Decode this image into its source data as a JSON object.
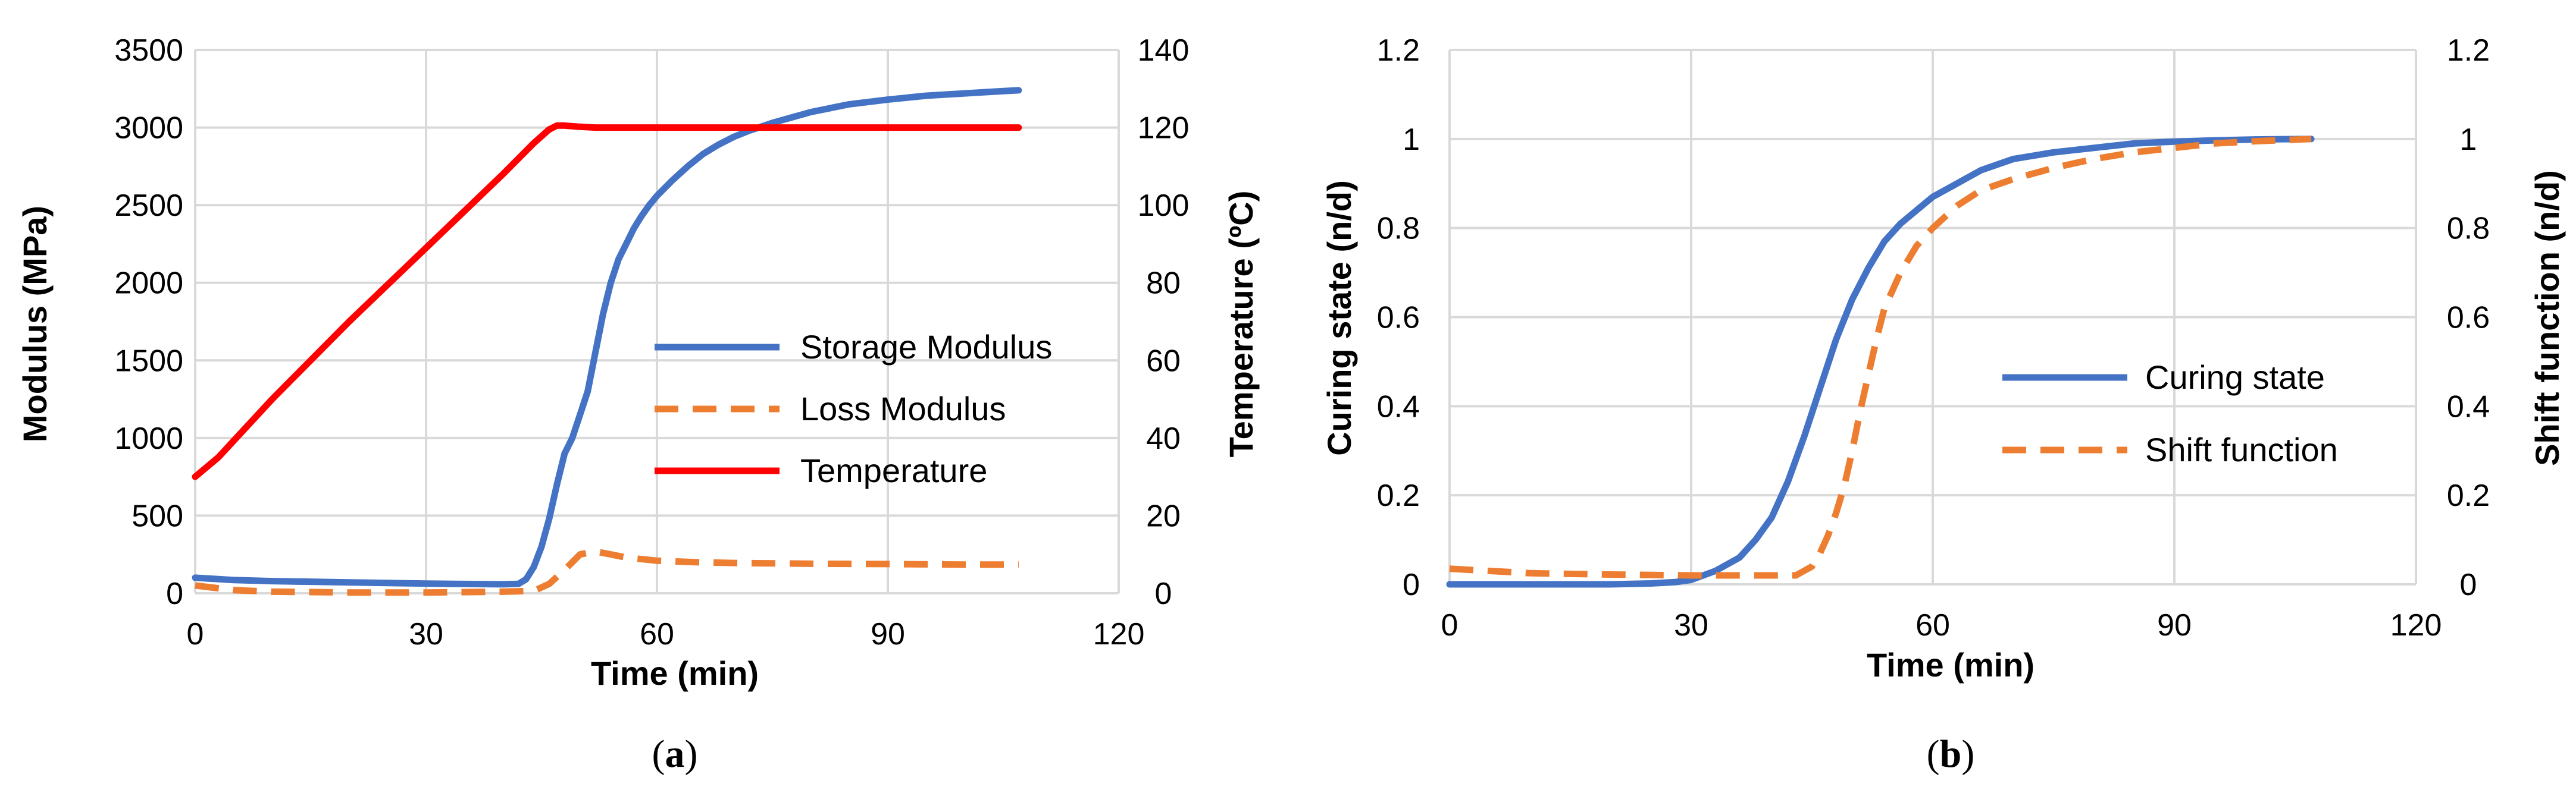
{
  "chart_data": [
    {
      "type": "line",
      "panel_label": "a",
      "xlabel": "Time (min)",
      "ylabel": "Modulus (MPa)",
      "y2label": "Temperature (ºC)",
      "xlim": [
        0,
        120
      ],
      "ylim": [
        0,
        3500
      ],
      "y2lim": [
        0,
        140
      ],
      "xticks": [
        "0",
        "30",
        "60",
        "90",
        "120"
      ],
      "yticks": [
        "0",
        "500",
        "1000",
        "1500",
        "2000",
        "2500",
        "3000",
        "3500"
      ],
      "y2ticks": [
        "0",
        "20",
        "40",
        "60",
        "80",
        "100",
        "120",
        "140"
      ],
      "grid": true,
      "legend_position": "center-right",
      "series": [
        {
          "name": "Storage Modulus",
          "axis": "left",
          "color": "#4472C4",
          "dash": "solid",
          "x": [
            0,
            5,
            10,
            20,
            30,
            40,
            42,
            43,
            44,
            45,
            46,
            47,
            48,
            49,
            50,
            51,
            52,
            53,
            54,
            55,
            56,
            57,
            58,
            59,
            60,
            62,
            64,
            66,
            68,
            70,
            72,
            75,
            80,
            85,
            90,
            95,
            100,
            105,
            107
          ],
          "y": [
            100,
            85,
            78,
            70,
            62,
            58,
            60,
            90,
            170,
            300,
            480,
            700,
            900,
            1000,
            1150,
            1300,
            1550,
            1800,
            2000,
            2150,
            2250,
            2350,
            2430,
            2500,
            2560,
            2660,
            2750,
            2830,
            2890,
            2940,
            2980,
            3030,
            3100,
            3150,
            3180,
            3205,
            3220,
            3235,
            3240
          ]
        },
        {
          "name": "Loss Modulus",
          "axis": "left",
          "color": "#ED7D31",
          "dash": "dashed",
          "x": [
            0,
            5,
            10,
            20,
            30,
            40,
            44,
            46,
            48,
            50,
            52,
            54,
            56,
            60,
            65,
            70,
            80,
            90,
            100,
            107
          ],
          "y": [
            50,
            20,
            10,
            5,
            5,
            10,
            15,
            60,
            150,
            250,
            270,
            250,
            230,
            210,
            200,
            195,
            190,
            188,
            185,
            185
          ]
        },
        {
          "name": "Temperature",
          "axis": "right",
          "color": "#FF0000",
          "dash": "solid",
          "x": [
            0,
            3,
            10,
            20,
            30,
            40,
            44,
            46,
            47,
            48,
            50,
            52,
            60,
            70,
            80,
            90,
            100,
            107
          ],
          "y": [
            30,
            35,
            50,
            70,
            89,
            108,
            116,
            119.5,
            120.5,
            120.5,
            120.2,
            120,
            120,
            120,
            120,
            120,
            120,
            120
          ]
        }
      ]
    },
    {
      "type": "line",
      "panel_label": "b",
      "xlabel": "Time (min)",
      "ylabel": "Curing state (n/d)",
      "y2label": "Shift function (n/d)",
      "xlim": [
        0,
        120
      ],
      "ylim": [
        0,
        1.2
      ],
      "y2lim": [
        0,
        1.2
      ],
      "xticks": [
        "0",
        "30",
        "60",
        "90",
        "120"
      ],
      "yticks": [
        "0",
        "0.2",
        "0.4",
        "0.6",
        "0.8",
        "1",
        "1.2"
      ],
      "y2ticks": [
        "0",
        "0.2",
        "0.4",
        "0.6",
        "0.8",
        "1",
        "1.2"
      ],
      "grid": true,
      "legend_position": "center-right",
      "series": [
        {
          "name": "Curing state",
          "axis": "left",
          "color": "#4472C4",
          "dash": "solid",
          "x": [
            0,
            10,
            20,
            25,
            28,
            30,
            33,
            36,
            38,
            40,
            42,
            44,
            46,
            48,
            50,
            52,
            54,
            56,
            58,
            60,
            63,
            66,
            70,
            75,
            80,
            85,
            90,
            95,
            100,
            107
          ],
          "y": [
            0,
            0,
            0,
            0.002,
            0.005,
            0.01,
            0.03,
            0.06,
            0.1,
            0.15,
            0.23,
            0.33,
            0.44,
            0.55,
            0.64,
            0.71,
            0.77,
            0.81,
            0.84,
            0.87,
            0.9,
            0.93,
            0.955,
            0.97,
            0.98,
            0.99,
            0.994,
            0.997,
            0.999,
            1
          ]
        },
        {
          "name": "Shift function",
          "axis": "right",
          "color": "#ED7D31",
          "dash": "dashed",
          "x": [
            0,
            5,
            10,
            20,
            30,
            40,
            43,
            45,
            46,
            47,
            48,
            49,
            50,
            51,
            52,
            53,
            54,
            56,
            58,
            60,
            63,
            66,
            70,
            75,
            80,
            85,
            90,
            95,
            100,
            107
          ],
          "y": [
            0.035,
            0.03,
            0.025,
            0.022,
            0.02,
            0.02,
            0.02,
            0.04,
            0.07,
            0.11,
            0.16,
            0.22,
            0.3,
            0.39,
            0.47,
            0.55,
            0.62,
            0.7,
            0.76,
            0.8,
            0.85,
            0.885,
            0.91,
            0.935,
            0.955,
            0.97,
            0.98,
            0.99,
            0.995,
            1
          ]
        }
      ]
    }
  ]
}
